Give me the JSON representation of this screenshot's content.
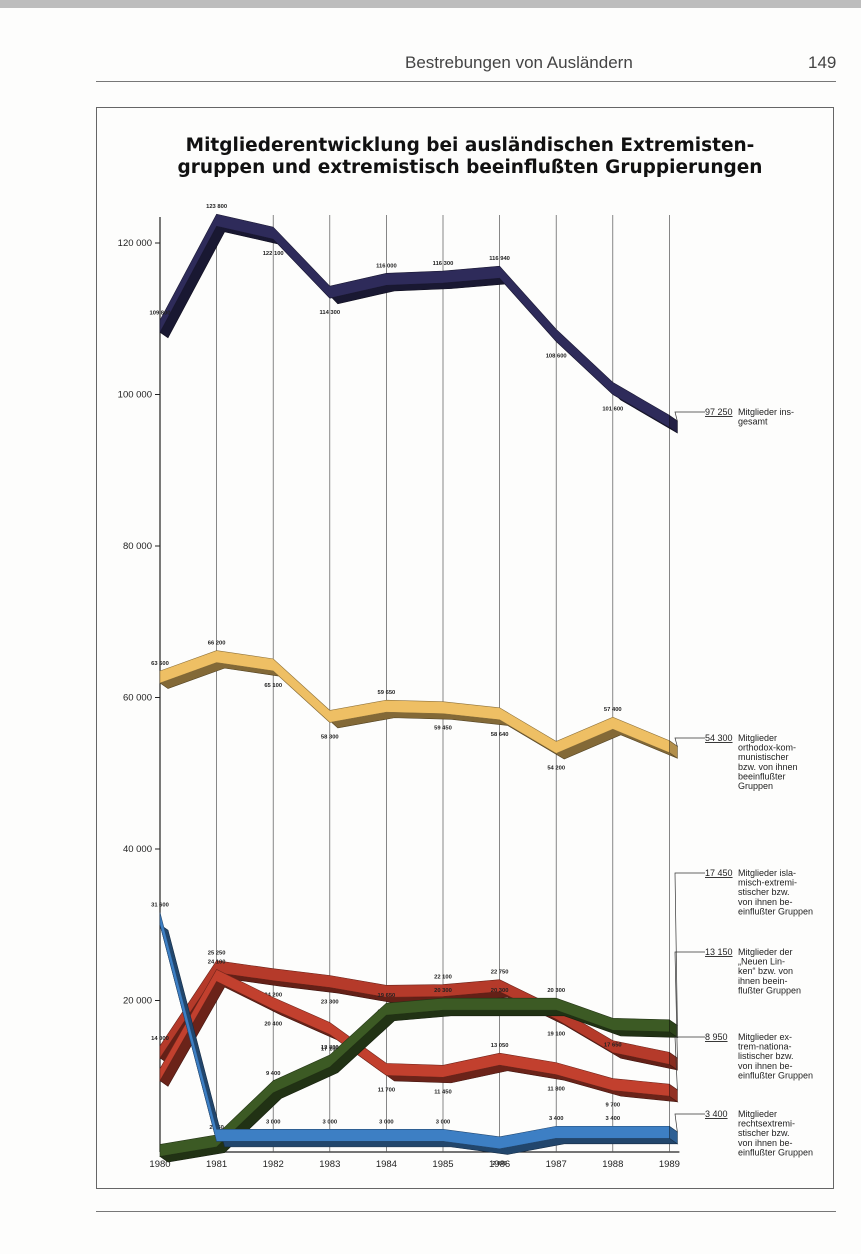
{
  "page": {
    "running_title": "Bestrebungen von Ausländern",
    "page_number": "149"
  },
  "chart_data": {
    "type": "line",
    "title": "Mitgliederentwicklung bei ausländischen Extremisten-\ngruppen und extremistisch beeinflußten Gruppierungen",
    "title_lines": [
      "Mitgliederentwicklung bei ausländischen Extremisten-",
      "gruppen und extremistisch beeinflußten Gruppierungen"
    ],
    "xlabel": "",
    "ylabel": "",
    "x": [
      "1980",
      "1981",
      "1982",
      "1983",
      "1984",
      "1985",
      "1986",
      "1987",
      "1988",
      "1989"
    ],
    "ylim": [
      0,
      130000
    ],
    "yticks": [
      {
        "value": 20000,
        "label": "20 000"
      },
      {
        "value": 40000,
        "label": "40 000"
      },
      {
        "value": 60000,
        "label": "60 000"
      },
      {
        "value": 80000,
        "label": "80 000"
      },
      {
        "value": 100000,
        "label": "100 000"
      },
      {
        "value": 120000,
        "label": "120 000"
      }
    ],
    "grid": "vertical",
    "legend": "right",
    "style": "3d-ribbon",
    "series": [
      {
        "name": "Mitglieder insgesamt",
        "color": "#2e2b5a",
        "values": [
          109800,
          123800,
          122100,
          114300,
          116000,
          116300,
          116940,
          108600,
          101600,
          97250
        ],
        "point_labels": [
          "109 800",
          "123 800",
          "122 100",
          "114 300",
          "116 000",
          "116 300",
          "116 940",
          "108 600",
          "101 600",
          ""
        ],
        "end_value_label": "97 250",
        "end_text": [
          "Mitglieder ins-",
          "gesamt"
        ]
      },
      {
        "name": "Mitglieder orthodox-kommunistischer bzw. von ihnen beeinflußter Gruppen",
        "color": "#eebf64",
        "values": [
          63500,
          66200,
          65100,
          58300,
          59650,
          59450,
          58640,
          54200,
          57400,
          54300
        ],
        "point_labels": [
          "63 500",
          "66 200",
          "65 100",
          "58 300",
          "59 650",
          "59 450",
          "58 640",
          "54 200",
          "57 400",
          ""
        ],
        "end_value_label": "54 300",
        "end_text": [
          "Mitglieder",
          "orthodox-kom-",
          "munistischer",
          "bzw. von ihnen",
          "beeinflußter",
          "Gruppen"
        ]
      },
      {
        "name": "Mitglieder islamisch-extremistischer bzw. von ihnen beeinflußter Gruppen",
        "color": "#3c5a24",
        "values": [
          1000,
          2250,
          9400,
          12800,
          19650,
          20300,
          20300,
          20300,
          17650,
          17450
        ],
        "point_labels": [
          "",
          "2 250",
          "9 400",
          "12 800",
          "19 650",
          "20 300",
          "20 300",
          "20 300",
          "17 650",
          ""
        ],
        "end_value_label": "17 450",
        "end_text": [
          "Mitglieder isla-",
          "misch-extremi-",
          "stischer bzw.",
          "von ihnen be-",
          "einflußter Gruppen"
        ]
      },
      {
        "name": "Mitglieder der „Neuen Linken“ bzw. von ihnen beeinflußter Gruppen",
        "color": "#b53a2a",
        "values": [
          14000,
          25250,
          24200,
          23300,
          22000,
          22100,
          22750,
          19100,
          14700,
          13150
        ],
        "point_labels": [
          "14 000",
          "25 250",
          "24 200",
          "23 300",
          "22 000",
          "22 100",
          "22 750",
          "19 100",
          "",
          ""
        ],
        "end_value_label": "13 150",
        "end_text": [
          "Mitglieder der",
          "„Neuen Lin-",
          "ken“ bzw. von",
          "ihnen beein-",
          "flußter Gruppen"
        ]
      },
      {
        "name": "Mitglieder extrem-nationalistischer bzw. von ihnen beeinflußter Gruppen",
        "color": "#c2402e",
        "values": [
          11000,
          24100,
          20400,
          17100,
          11700,
          11450,
          13050,
          11800,
          9700,
          8950
        ],
        "point_labels": [
          "",
          "24 100",
          "20 400",
          "17 100",
          "11 700",
          "11 450",
          "13 050",
          "11 800",
          "9 700",
          ""
        ],
        "end_value_label": "8 950",
        "end_text": [
          "Mitglieder ex-",
          "trem-nationa-",
          "listischer bzw.",
          "von ihnen be-",
          "einflußter Gruppen"
        ]
      },
      {
        "name": "Mitglieder rechtsextremistischer bzw. von ihnen beeinflußter Gruppen",
        "color": "#3d7fc4",
        "values": [
          31600,
          3000,
          3000,
          3000,
          3000,
          3000,
          2000,
          3400,
          3400,
          3400
        ],
        "point_labels": [
          "31 600",
          "",
          "3 000",
          "3 000",
          "3 000",
          "3 000",
          "2 000",
          "3 400",
          "3 400",
          ""
        ],
        "end_value_label": "3 400",
        "end_text": [
          "Mitglieder",
          "rechtsextremi-",
          "stischer bzw.",
          "von ihnen be-",
          "einflußter Gruppen"
        ]
      }
    ]
  }
}
